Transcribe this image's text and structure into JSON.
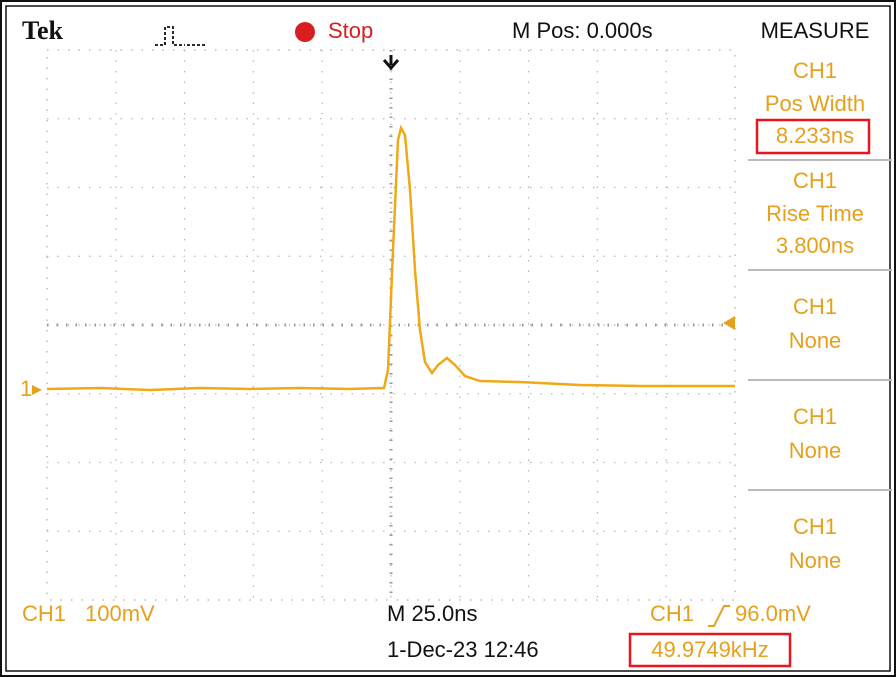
{
  "header": {
    "logo": "Tek",
    "status": "Stop",
    "position": "M Pos: 0.000s",
    "menu_title": "MEASURE"
  },
  "channel_marker": "1",
  "measurements": [
    {
      "source": "CH1",
      "type": "Pos Width",
      "value": "8.233ns"
    },
    {
      "source": "CH1",
      "type": "Rise Time",
      "value": "3.800ns"
    },
    {
      "source": "CH1",
      "type": "None"
    },
    {
      "source": "CH1",
      "type": "None"
    },
    {
      "source": "CH1",
      "type": "None"
    }
  ],
  "footer": {
    "channel": "CH1",
    "scale": "100mV",
    "timebase": "M 25.0ns",
    "trigger_source": "CH1",
    "trigger_level": "96.0mV",
    "datetime": "1-Dec-23 12:46",
    "frequency": "49.9749kHz"
  }
}
